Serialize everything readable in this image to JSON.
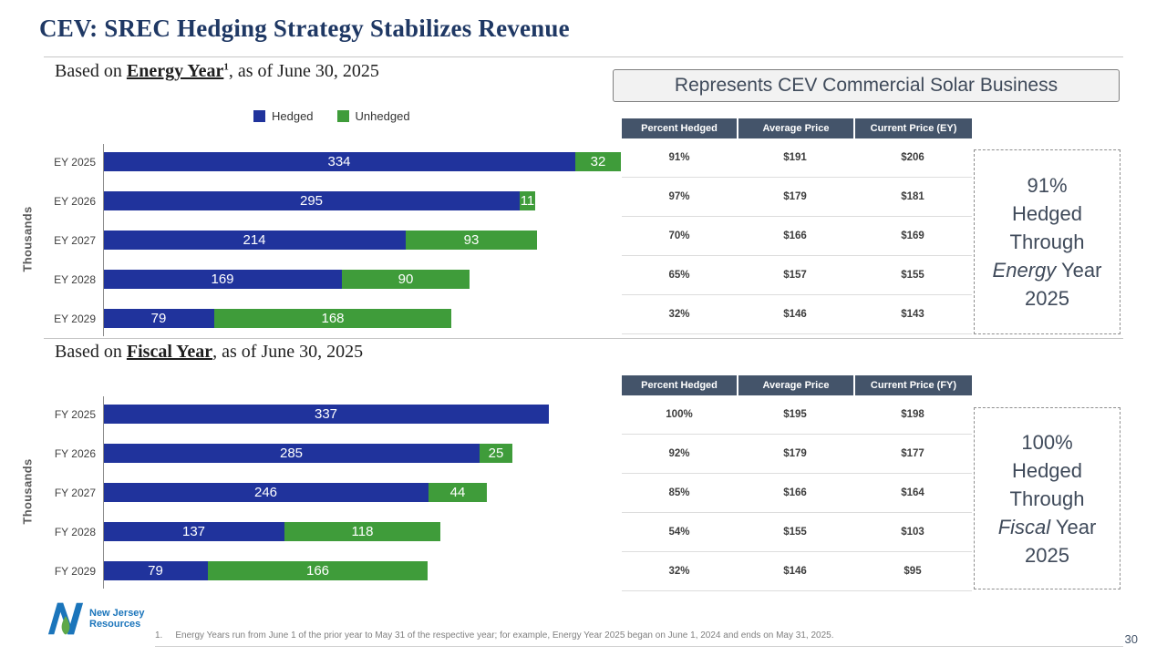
{
  "slide": {
    "title": "CEV: SREC Hedging Strategy Stabilizes Revenue",
    "banner": "Represents CEV Commercial Solar Business",
    "page_number": "30",
    "footnote_number": "1.",
    "footnote_text": "Energy Years run from June 1 of the prior year to May 31 of the respective year; for example, Energy Year 2025 began on June 1, 2024 and ends on May 31, 2025.",
    "logo_line1": "New Jersey",
    "logo_line2": "Resources"
  },
  "colors": {
    "hedged_blue": "#20339C",
    "unhedged_green": "#3F9C3A",
    "table_header_bg": "#44546A",
    "title_navy": "#1F3864",
    "logo_blue": "#1B75BB"
  },
  "sections": [
    {
      "subtitle_prefix": "Based on ",
      "subtitle_emph": "Energy Year",
      "subtitle_sup": "1",
      "subtitle_suffix": ", as of June 30, 2025",
      "table": {
        "headers": [
          "Percent Hedged",
          "Average Price",
          "Current Price (EY)"
        ],
        "rows": [
          [
            "91%",
            "$191",
            "$206"
          ],
          [
            "97%",
            "$179",
            "$181"
          ],
          [
            "70%",
            "$166",
            "$169"
          ],
          [
            "65%",
            "$157",
            "$155"
          ],
          [
            "32%",
            "$146",
            "$143"
          ]
        ]
      },
      "callout": {
        "line1": "91%",
        "line2": "Hedged",
        "line3": "Through",
        "emph": "Energy",
        "rest": " Year",
        "line5": "2025"
      }
    },
    {
      "subtitle_prefix": "Based on ",
      "subtitle_emph": "Fiscal Year",
      "subtitle_sup": "",
      "subtitle_suffix": ", as of June 30, 2025",
      "table": {
        "headers": [
          "Percent Hedged",
          "Average Price",
          "Current Price (FY)"
        ],
        "rows": [
          [
            "100%",
            "$195",
            "$198"
          ],
          [
            "92%",
            "$179",
            "$177"
          ],
          [
            "85%",
            "$166",
            "$164"
          ],
          [
            "54%",
            "$155",
            "$103"
          ],
          [
            "32%",
            "$146",
            "$95"
          ]
        ]
      },
      "callout": {
        "line1": "100%",
        "line2": "Hedged",
        "line3": "Through",
        "emph": "Fiscal",
        "rest": " Year",
        "line5": "2025"
      }
    }
  ],
  "chart_data": [
    {
      "type": "bar",
      "orientation": "horizontal",
      "stacked": true,
      "title": "Based on Energy Year, as of June 30, 2025",
      "categories": [
        "EY 2025",
        "EY 2026",
        "EY 2027",
        "EY 2028",
        "EY 2029"
      ],
      "series": [
        {
          "name": "Hedged",
          "color": "#20339C",
          "values": [
            334,
            295,
            214,
            169,
            79
          ]
        },
        {
          "name": "Unhedged",
          "color": "#3F9C3A",
          "values": [
            32,
            11,
            93,
            90,
            168
          ]
        }
      ],
      "ylabel": "Thousands",
      "xlim": [
        0,
        400
      ],
      "legend_position": "top",
      "data_labels": true,
      "grid": false
    },
    {
      "type": "bar",
      "orientation": "horizontal",
      "stacked": true,
      "title": "Based on Fiscal Year, as of June 30, 2025",
      "categories": [
        "FY 2025",
        "FY 2026",
        "FY 2027",
        "FY 2028",
        "FY 2029"
      ],
      "series": [
        {
          "name": "Hedged",
          "color": "#20339C",
          "values": [
            337,
            285,
            246,
            137,
            79
          ]
        },
        {
          "name": "Unhedged",
          "color": "#3F9C3A",
          "values": [
            0,
            25,
            44,
            118,
            166
          ]
        }
      ],
      "ylabel": "Thousands",
      "xlim": [
        0,
        400
      ],
      "legend_position": "none",
      "data_labels": true,
      "grid": false
    }
  ]
}
